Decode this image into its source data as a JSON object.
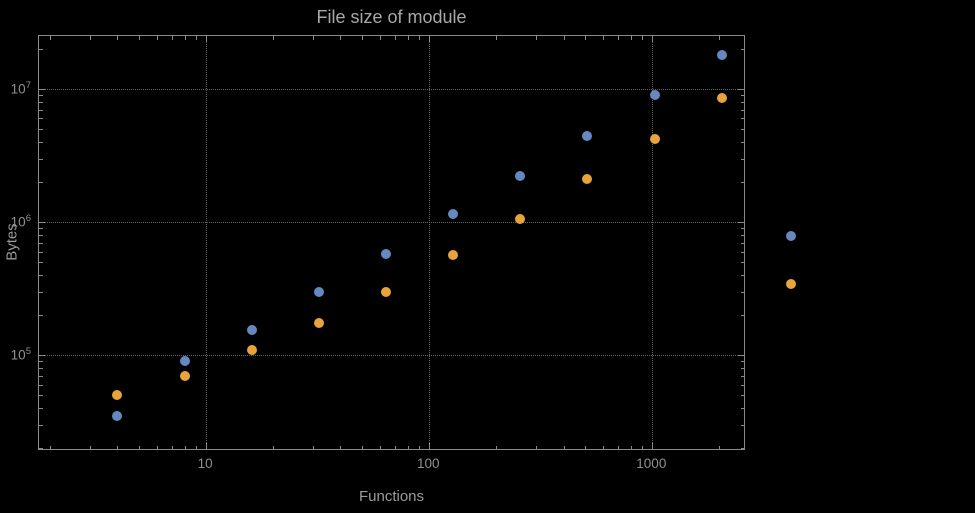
{
  "chart_data": {
    "type": "scatter",
    "title": "File size of module",
    "xlabel": "Functions",
    "ylabel": "Bytes",
    "x_scale": "log",
    "y_scale": "log",
    "xlim": [
      1.78,
      2630
    ],
    "ylim": [
      19000,
      25000000
    ],
    "grid": "dotted at major ticks",
    "x_ticks": [
      {
        "value": 10,
        "label": "10"
      },
      {
        "value": 100,
        "label": "100"
      },
      {
        "value": 1000,
        "label": "1000"
      }
    ],
    "y_ticks": [
      {
        "value": 100000,
        "base": "10",
        "exp": "5"
      },
      {
        "value": 1000000,
        "base": "10",
        "exp": "6"
      },
      {
        "value": 10000000,
        "base": "10",
        "exp": "7"
      }
    ],
    "series": [
      {
        "name": "series-1-blue",
        "color": "#6688c0",
        "points": [
          [
            4,
            35000
          ],
          [
            8,
            90000
          ],
          [
            16,
            155000
          ],
          [
            32,
            300000
          ],
          [
            64,
            570000
          ],
          [
            128,
            1150000
          ],
          [
            256,
            2200000
          ],
          [
            512,
            4400000
          ],
          [
            1024,
            9000000
          ],
          [
            2048,
            18000000
          ]
        ]
      },
      {
        "name": "series-2-orange",
        "color": "#e8a33d",
        "points": [
          [
            4,
            50000
          ],
          [
            8,
            70000
          ],
          [
            16,
            110000
          ],
          [
            32,
            175000
          ],
          [
            64,
            300000
          ],
          [
            128,
            560000
          ],
          [
            256,
            1050000
          ],
          [
            512,
            2100000
          ],
          [
            1024,
            4200000
          ],
          [
            2048,
            8500000
          ]
        ]
      }
    ],
    "legend_markers": [
      {
        "series": 0,
        "color": "#6688c0"
      },
      {
        "series": 1,
        "color": "#e8a33d"
      }
    ]
  },
  "colors": {
    "background": "#000000",
    "frame": "#8a8a8a",
    "gridline": "#646464",
    "tick_label_text": "#8f8f8f",
    "axis_label_text": "#9a9a9a",
    "title_text": "#a8a8a8"
  }
}
